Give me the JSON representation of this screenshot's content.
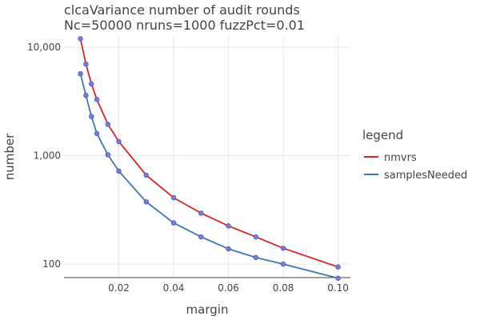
{
  "chart_data": {
    "type": "line",
    "title": "clcaVariance number of audit rounds",
    "subtitle": "Nc=50000 nruns=1000 fuzzPct=0.01",
    "xlabel": "margin",
    "ylabel": "number",
    "xlim": [
      0.0,
      0.1045
    ],
    "ylim": [
      75,
      12500
    ],
    "y_scale": "log",
    "x_ticks": [
      {
        "value": 0.02,
        "label": "0.02"
      },
      {
        "value": 0.04,
        "label": "0.04"
      },
      {
        "value": 0.06,
        "label": "0.06"
      },
      {
        "value": 0.08,
        "label": "0.08"
      },
      {
        "value": 0.1,
        "label": "0.10"
      }
    ],
    "y_ticks": [
      {
        "value": 100,
        "label": "100"
      },
      {
        "value": 1000,
        "label": "1,000"
      },
      {
        "value": 10000,
        "label": "10,000"
      }
    ],
    "grid": true,
    "legend": {
      "title": "legend",
      "position": "right"
    },
    "x": [
      0.006,
      0.008,
      0.01,
      0.012,
      0.016,
      0.02,
      0.03,
      0.04,
      0.05,
      0.06,
      0.07,
      0.08,
      0.1
    ],
    "series": [
      {
        "name": "nmvrs",
        "color": "#d62728",
        "values": [
          12000,
          7000,
          4600,
          3300,
          1950,
          1350,
          660,
          410,
          295,
          225,
          178,
          140,
          94
        ]
      },
      {
        "name": "samplesNeeded",
        "color": "#3a78b8",
        "values": [
          5700,
          3600,
          2300,
          1600,
          1020,
          720,
          375,
          240,
          178,
          138,
          115,
          100,
          74
        ]
      }
    ],
    "marker_color": "#7a7fd4"
  }
}
